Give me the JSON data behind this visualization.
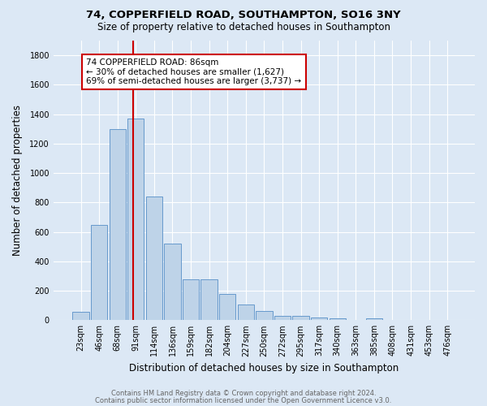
{
  "title1": "74, COPPERFIELD ROAD, SOUTHAMPTON, SO16 3NY",
  "title2": "Size of property relative to detached houses in Southampton",
  "xlabel": "Distribution of detached houses by size in Southampton",
  "ylabel": "Number of detached properties",
  "footnote1": "Contains HM Land Registry data © Crown copyright and database right 2024.",
  "footnote2": "Contains public sector information licensed under the Open Government Licence v3.0.",
  "bar_labels": [
    "23sqm",
    "46sqm",
    "68sqm",
    "91sqm",
    "114sqm",
    "136sqm",
    "159sqm",
    "182sqm",
    "204sqm",
    "227sqm",
    "250sqm",
    "272sqm",
    "295sqm",
    "317sqm",
    "340sqm",
    "363sqm",
    "385sqm",
    "408sqm",
    "431sqm",
    "453sqm",
    "476sqm"
  ],
  "bar_values": [
    55,
    645,
    1300,
    1370,
    840,
    520,
    275,
    275,
    180,
    105,
    62,
    32,
    32,
    20,
    10,
    3,
    15,
    0,
    0,
    0,
    0
  ],
  "bar_color": "#bed3e8",
  "bar_edge_color": "#6699cc",
  "vline_x_index": 2.85,
  "vline_color": "#cc0000",
  "annotation_text": "74 COPPERFIELD ROAD: 86sqm\n← 30% of detached houses are smaller (1,627)\n69% of semi-detached houses are larger (3,737) →",
  "annotation_box_facecolor": "#ffffff",
  "annotation_box_edgecolor": "#cc0000",
  "ylim": [
    0,
    1900
  ],
  "ytick_interval": 200,
  "bg_color": "#dce8f5",
  "grid_color": "#ffffff",
  "title1_fontsize": 9.5,
  "title2_fontsize": 8.5,
  "xlabel_fontsize": 8.5,
  "ylabel_fontsize": 8.5,
  "tick_fontsize": 7,
  "footnote_fontsize": 6,
  "footnote_color": "#666666"
}
